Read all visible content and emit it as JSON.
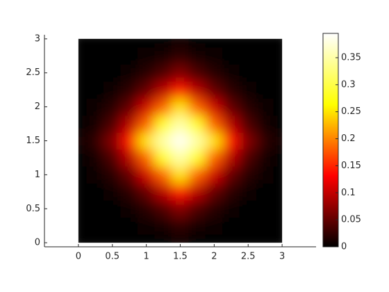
{
  "chart_data": {
    "type": "heatmap",
    "x": [
      0,
      0.25,
      0.5,
      0.75,
      1,
      1.25,
      1.5,
      1.75,
      2,
      2.25,
      2.5,
      2.75,
      3
    ],
    "y": [
      0,
      0.25,
      0.5,
      0.75,
      1,
      1.25,
      1.5,
      1.75,
      2,
      2.25,
      2.5,
      2.75,
      3
    ],
    "z": [
      [
        0,
        0,
        0,
        0.001,
        0.001,
        0.003,
        0.007,
        0.003,
        0.001,
        0.001,
        0,
        0,
        0
      ],
      [
        0,
        0,
        0.001,
        0.002,
        0.006,
        0.013,
        0.024,
        0.013,
        0.006,
        0.002,
        0.001,
        0,
        0
      ],
      [
        0,
        0.001,
        0.002,
        0.007,
        0.019,
        0.039,
        0.066,
        0.039,
        0.019,
        0.007,
        0.002,
        0.001,
        0
      ],
      [
        0.001,
        0.002,
        0.007,
        0.021,
        0.05,
        0.094,
        0.143,
        0.094,
        0.05,
        0.021,
        0.007,
        0.002,
        0.001
      ],
      [
        0.001,
        0.006,
        0.019,
        0.05,
        0.107,
        0.182,
        0.25,
        0.182,
        0.107,
        0.05,
        0.019,
        0.006,
        0.001
      ],
      [
        0.003,
        0.013,
        0.039,
        0.094,
        0.182,
        0.282,
        0.349,
        0.282,
        0.182,
        0.094,
        0.039,
        0.013,
        0.003
      ],
      [
        0.007,
        0.024,
        0.066,
        0.143,
        0.25,
        0.349,
        0.39,
        0.349,
        0.25,
        0.143,
        0.066,
        0.024,
        0.007
      ],
      [
        0.003,
        0.013,
        0.039,
        0.094,
        0.182,
        0.282,
        0.349,
        0.282,
        0.182,
        0.094,
        0.039,
        0.013,
        0.003
      ],
      [
        0.001,
        0.006,
        0.019,
        0.05,
        0.107,
        0.182,
        0.25,
        0.182,
        0.107,
        0.05,
        0.019,
        0.006,
        0.001
      ],
      [
        0.001,
        0.002,
        0.007,
        0.021,
        0.05,
        0.094,
        0.143,
        0.094,
        0.05,
        0.021,
        0.007,
        0.002,
        0.001
      ],
      [
        0,
        0.001,
        0.002,
        0.007,
        0.019,
        0.039,
        0.066,
        0.039,
        0.019,
        0.007,
        0.002,
        0.001,
        0
      ],
      [
        0,
        0,
        0.001,
        0.002,
        0.006,
        0.013,
        0.024,
        0.013,
        0.006,
        0.002,
        0.001,
        0,
        0
      ],
      [
        0,
        0,
        0,
        0.001,
        0.001,
        0.003,
        0.007,
        0.003,
        0.001,
        0.001,
        0,
        0,
        0
      ]
    ],
    "colormap": [
      "#000000",
      "#ff0000",
      "#ffff00",
      "#ffffff"
    ],
    "xlim": [
      -0.5,
      3.5
    ],
    "xticks": [
      0,
      0.5,
      1,
      1.5,
      2,
      2.5,
      3
    ],
    "ylim": [
      -0.06,
      3.06
    ],
    "yticks": [
      0,
      0.5,
      1,
      1.5,
      2,
      2.5,
      3
    ],
    "clim": [
      0,
      0.395
    ],
    "cticks": [
      0,
      0.05,
      0.1,
      0.15,
      0.2,
      0.25,
      0.3,
      0.35
    ]
  }
}
